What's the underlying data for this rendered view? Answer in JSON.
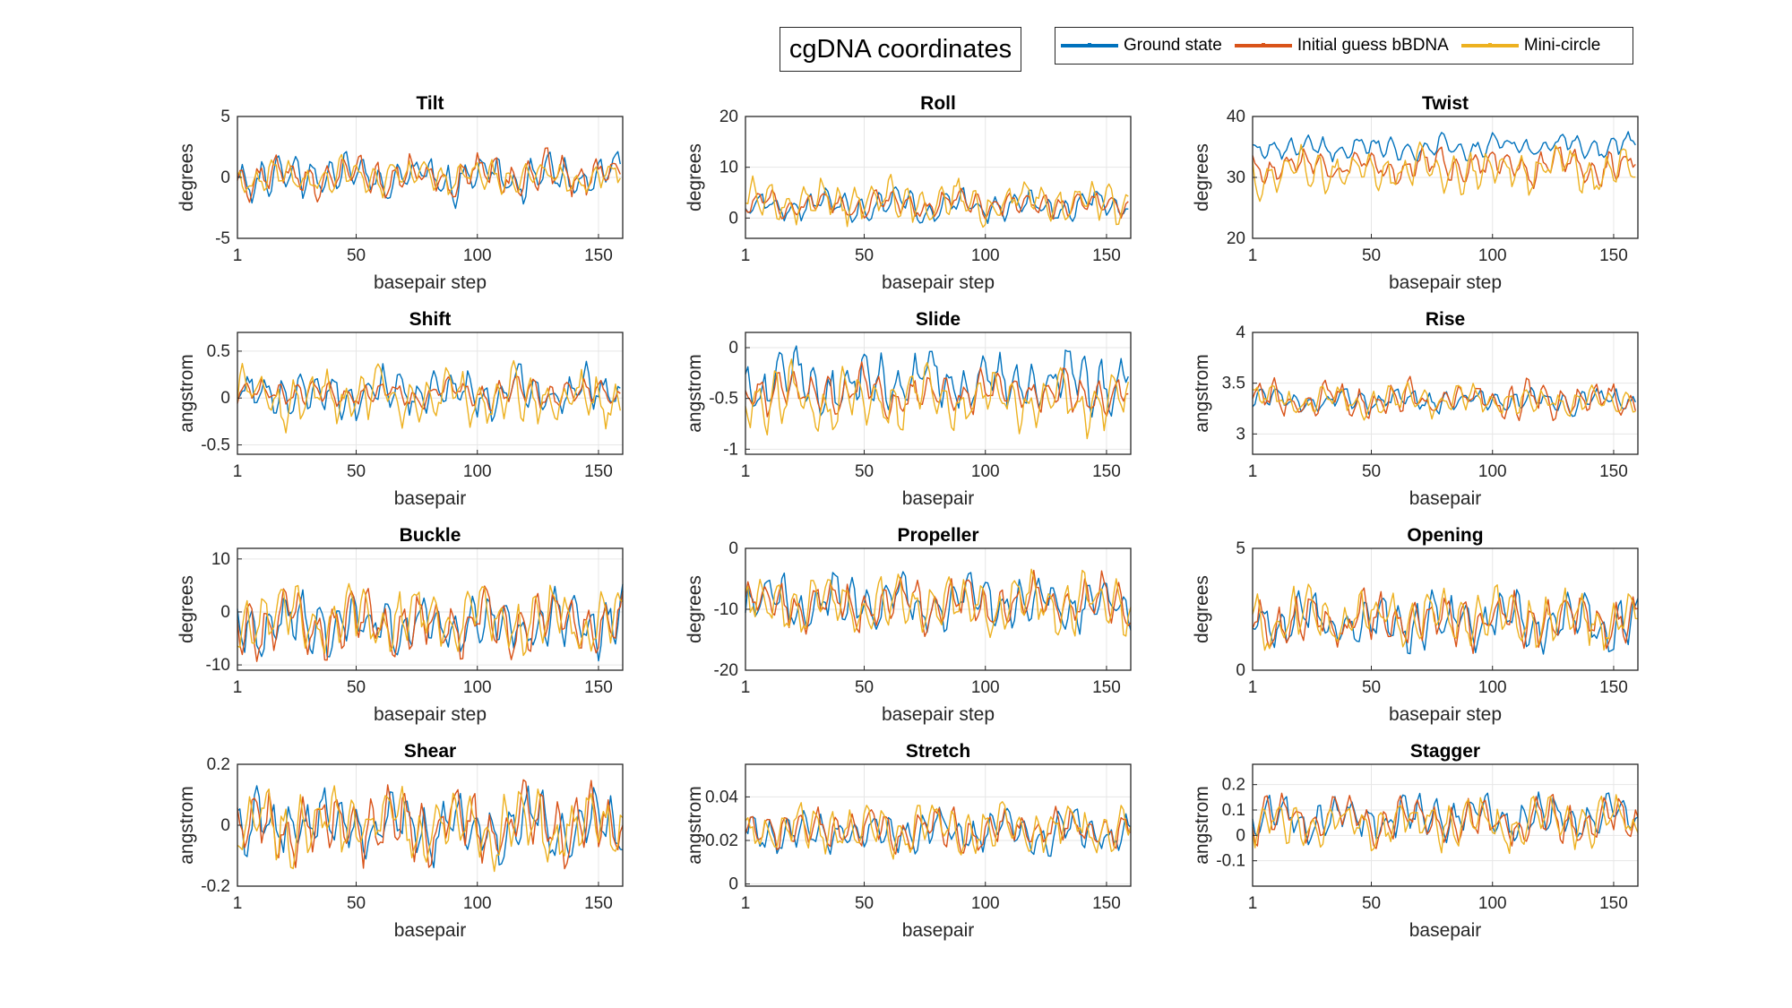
{
  "figure_title": "cgDNA coordinates",
  "legend": [
    {
      "label": "Ground state",
      "color": "#0072BD"
    },
    {
      "label": "Initial guess bBDNA",
      "color": "#D95319"
    },
    {
      "label": "Mini-circle",
      "color": "#EDB120"
    }
  ],
  "chart_data": [
    {
      "type": "line",
      "title": "Tilt",
      "xlabel": "basepair step",
      "ylabel": "degrees",
      "xlim": [
        1,
        160
      ],
      "ylim": [
        -5,
        5
      ],
      "xticks": [
        1,
        50,
        100,
        150
      ],
      "yticks": [
        -5,
        0,
        5
      ],
      "x_range": [
        1,
        159
      ],
      "approx_series": [
        {
          "name": "Ground state",
          "mean": 0.0,
          "amplitude": 2.5,
          "seed": 11
        },
        {
          "name": "Initial guess bBDNA",
          "mean": 0.2,
          "amplitude": 2.3,
          "seed": 12
        },
        {
          "name": "Mini-circle",
          "mean": 0.0,
          "amplitude": 2.0,
          "seed": 13
        }
      ]
    },
    {
      "type": "line",
      "title": "Roll",
      "xlabel": "basepair step",
      "ylabel": "degrees",
      "xlim": [
        1,
        160
      ],
      "ylim": [
        -4,
        20
      ],
      "xticks": [
        1,
        50,
        100,
        150
      ],
      "yticks": [
        0,
        10,
        20
      ],
      "x_range": [
        1,
        159
      ],
      "approx_series": [
        {
          "name": "Ground state",
          "mean": 2.5,
          "amplitude": 4.0,
          "seed": 21
        },
        {
          "name": "Initial guess bBDNA",
          "mean": 2.8,
          "amplitude": 3.5,
          "seed": 22
        },
        {
          "name": "Mini-circle",
          "mean": 3.5,
          "amplitude": 6.0,
          "seed": 23
        }
      ]
    },
    {
      "type": "line",
      "title": "Twist",
      "xlabel": "basepair step",
      "ylabel": "degrees",
      "xlim": [
        1,
        160
      ],
      "ylim": [
        20,
        40
      ],
      "xticks": [
        1,
        50,
        100,
        150
      ],
      "yticks": [
        20,
        30,
        40
      ],
      "x_range": [
        1,
        159
      ],
      "approx_series": [
        {
          "name": "Ground state",
          "mean": 35,
          "amplitude": 3.0,
          "seed": 31
        },
        {
          "name": "Initial guess bBDNA",
          "mean": 32,
          "amplitude": 4.0,
          "seed": 32
        },
        {
          "name": "Mini-circle",
          "mean": 31,
          "amplitude": 5.0,
          "seed": 33
        }
      ]
    },
    {
      "type": "line",
      "title": "Shift",
      "xlabel": "basepair",
      "ylabel": "angstrom",
      "xlim": [
        1,
        160
      ],
      "ylim": [
        -0.6,
        0.7
      ],
      "xticks": [
        1,
        50,
        100,
        150
      ],
      "yticks": [
        -0.5,
        0,
        0.5
      ],
      "x_range": [
        1,
        159
      ],
      "approx_series": [
        {
          "name": "Ground state",
          "mean": 0.05,
          "amplitude": 0.35,
          "seed": 41
        },
        {
          "name": "Initial guess bBDNA",
          "mean": 0.05,
          "amplitude": 0.2,
          "seed": 42
        },
        {
          "name": "Mini-circle",
          "mean": 0.0,
          "amplitude": 0.4,
          "seed": 43
        }
      ]
    },
    {
      "type": "line",
      "title": "Slide",
      "xlabel": "basepair",
      "ylabel": "angstrom",
      "xlim": [
        1,
        160
      ],
      "ylim": [
        -1.05,
        0.15
      ],
      "xticks": [
        1,
        50,
        100,
        150
      ],
      "yticks": [
        -1,
        -0.5,
        0
      ],
      "x_range": [
        1,
        159
      ],
      "approx_series": [
        {
          "name": "Ground state",
          "mean": -0.35,
          "amplitude": 0.45,
          "seed": 51
        },
        {
          "name": "Initial guess bBDNA",
          "mean": -0.45,
          "amplitude": 0.3,
          "seed": 52
        },
        {
          "name": "Mini-circle",
          "mean": -0.5,
          "amplitude": 0.45,
          "seed": 53
        }
      ]
    },
    {
      "type": "line",
      "title": "Rise",
      "xlabel": "basepair",
      "ylabel": "angstrom",
      "xlim": [
        1,
        160
      ],
      "ylim": [
        2.8,
        4
      ],
      "xticks": [
        1,
        50,
        100,
        150
      ],
      "yticks": [
        3,
        3.5,
        4
      ],
      "x_range": [
        1,
        159
      ],
      "approx_series": [
        {
          "name": "Ground state",
          "mean": 3.33,
          "amplitude": 0.15,
          "seed": 61
        },
        {
          "name": "Initial guess bBDNA",
          "mean": 3.33,
          "amplitude": 0.25,
          "seed": 62
        },
        {
          "name": "Mini-circle",
          "mean": 3.33,
          "amplitude": 0.2,
          "seed": 63
        }
      ]
    },
    {
      "type": "line",
      "title": "Buckle",
      "xlabel": "basepair step",
      "ylabel": "degrees",
      "xlim": [
        1,
        160
      ],
      "ylim": [
        -11,
        12
      ],
      "xticks": [
        1,
        50,
        100,
        150
      ],
      "yticks": [
        -10,
        0,
        10
      ],
      "x_range": [
        1,
        160
      ],
      "approx_series": [
        {
          "name": "Ground state",
          "mean": -2,
          "amplitude": 8.0,
          "seed": 71
        },
        {
          "name": "Initial guess bBDNA",
          "mean": -2,
          "amplitude": 8.0,
          "seed": 72
        },
        {
          "name": "Mini-circle",
          "mean": -1.5,
          "amplitude": 8.5,
          "seed": 73
        }
      ]
    },
    {
      "type": "line",
      "title": "Propeller",
      "xlabel": "basepair step",
      "ylabel": "degrees",
      "xlim": [
        1,
        160
      ],
      "ylim": [
        -20,
        0
      ],
      "xticks": [
        1,
        50,
        100,
        150
      ],
      "yticks": [
        -20,
        -10,
        0
      ],
      "x_range": [
        1,
        160
      ],
      "approx_series": [
        {
          "name": "Ground state",
          "mean": -9,
          "amplitude": 6.0,
          "seed": 81
        },
        {
          "name": "Initial guess bBDNA",
          "mean": -9,
          "amplitude": 6.0,
          "seed": 82
        },
        {
          "name": "Mini-circle",
          "mean": -9,
          "amplitude": 6.5,
          "seed": 83
        }
      ]
    },
    {
      "type": "line",
      "title": "Opening",
      "xlabel": "basepair step",
      "ylabel": "degrees",
      "xlim": [
        1,
        160
      ],
      "ylim": [
        0,
        5
      ],
      "xticks": [
        1,
        50,
        100,
        150
      ],
      "yticks": [
        0,
        5
      ],
      "x_range": [
        1,
        160
      ],
      "approx_series": [
        {
          "name": "Ground state",
          "mean": 2.0,
          "amplitude": 1.5,
          "seed": 91
        },
        {
          "name": "Initial guess bBDNA",
          "mean": 2.0,
          "amplitude": 1.5,
          "seed": 92
        },
        {
          "name": "Mini-circle",
          "mean": 2.1,
          "amplitude": 1.7,
          "seed": 93
        }
      ]
    },
    {
      "type": "line",
      "title": "Shear",
      "xlabel": "basepair",
      "ylabel": "angstrom",
      "xlim": [
        1,
        160
      ],
      "ylim": [
        -0.2,
        0.2
      ],
      "xticks": [
        1,
        50,
        100,
        150
      ],
      "yticks": [
        -0.2,
        0,
        0.2
      ],
      "x_range": [
        1,
        160
      ],
      "approx_series": [
        {
          "name": "Ground state",
          "mean": 0.0,
          "amplitude": 0.16,
          "seed": 101
        },
        {
          "name": "Initial guess bBDNA",
          "mean": 0.0,
          "amplitude": 0.16,
          "seed": 102
        },
        {
          "name": "Mini-circle",
          "mean": 0.0,
          "amplitude": 0.17,
          "seed": 103
        }
      ]
    },
    {
      "type": "line",
      "title": "Stretch",
      "xlabel": "basepair",
      "ylabel": "angstrom",
      "xlim": [
        1,
        160
      ],
      "ylim": [
        -0.001,
        0.055
      ],
      "xticks": [
        1,
        50,
        100,
        150
      ],
      "yticks": [
        0,
        0.02,
        0.04
      ],
      "x_range": [
        1,
        160
      ],
      "approx_series": [
        {
          "name": "Ground state",
          "mean": 0.024,
          "amplitude": 0.013,
          "seed": 111
        },
        {
          "name": "Initial guess bBDNA",
          "mean": 0.025,
          "amplitude": 0.013,
          "seed": 112
        },
        {
          "name": "Mini-circle",
          "mean": 0.025,
          "amplitude": 0.015,
          "seed": 113
        }
      ]
    },
    {
      "type": "line",
      "title": "Stagger",
      "xlabel": "basepair",
      "ylabel": "angstrom",
      "xlim": [
        1,
        160
      ],
      "ylim": [
        -0.2,
        0.28
      ],
      "xticks": [
        1,
        50,
        100,
        150
      ],
      "yticks": [
        -0.1,
        0,
        0.1,
        0.2
      ],
      "x_range": [
        1,
        160
      ],
      "approx_series": [
        {
          "name": "Ground state",
          "mean": 0.07,
          "amplitude": 0.12,
          "seed": 121
        },
        {
          "name": "Initial guess bBDNA",
          "mean": 0.06,
          "amplitude": 0.12,
          "seed": 122
        },
        {
          "name": "Mini-circle",
          "mean": 0.05,
          "amplitude": 0.14,
          "seed": 123
        }
      ]
    }
  ]
}
